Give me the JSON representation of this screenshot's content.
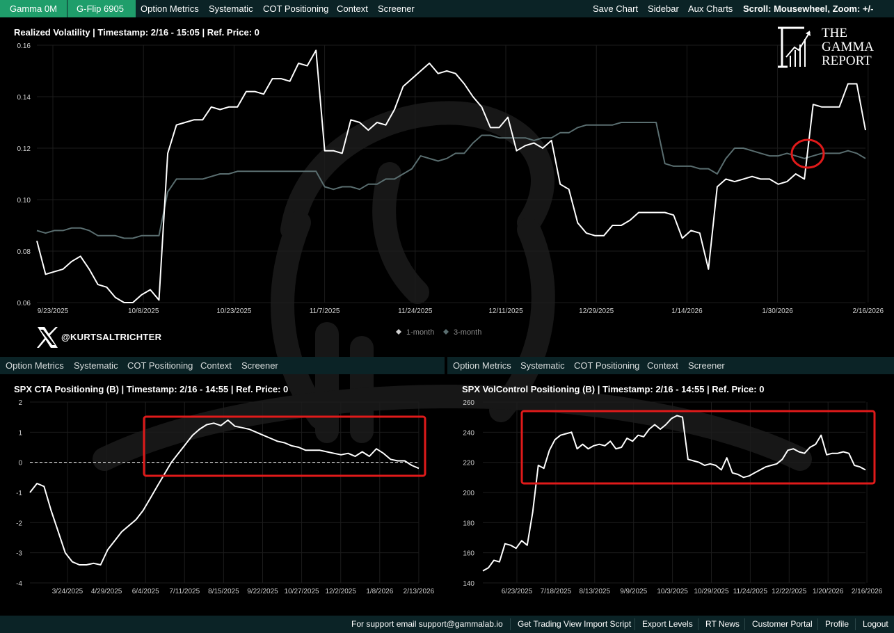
{
  "top_nav": {
    "gamma": "Gamma 0M",
    "gflip": "G-Flip 6905",
    "tabs": [
      "Option Metrics",
      "Systematic",
      "COT Positioning",
      "Context",
      "Screener"
    ],
    "right": [
      "Save Chart",
      "Sidebar",
      "Aux Charts"
    ],
    "scroll_label": "Scroll:",
    "scroll_value": " Mousewheel, Zoom: +/-"
  },
  "mid_nav_left": [
    "Option Metrics",
    "Systematic",
    "COT Positioning",
    "Context",
    "Screener"
  ],
  "mid_nav_right": [
    "Option Metrics",
    "Systematic",
    "COT Positioning",
    "Context",
    "Screener"
  ],
  "logo": {
    "line1": "THE",
    "line2": "GAMMA",
    "line3": "REPORT"
  },
  "social": {
    "handle": "@KURTSALTRICHTER"
  },
  "footer": {
    "support": "For support email support@gammalab.io",
    "links": [
      "Get Trading View Import Script",
      "Export Levels",
      "RT News",
      "Customer Portal",
      "Profile",
      "Logout"
    ]
  },
  "colors": {
    "nav_bg": "#0b2326",
    "accent_green": "#1f9e6b",
    "highlight_red": "#e01a1a",
    "series_1m": "#ffffff",
    "series_3m": "#5a6e70"
  },
  "chart_data": [
    {
      "type": "line",
      "title": "Realized Volatility | Timestamp: 2/16 - 15:05  | Ref. Price: 0",
      "x_tick_labels": [
        "9/23/2025",
        "10/8/2025",
        "10/23/2025",
        "11/7/2025",
        "11/24/2025",
        "12/11/2025",
        "12/29/2025",
        "1/14/2026",
        "1/30/2026",
        "2/16/2026"
      ],
      "y_tick_labels": [
        "0.06",
        "0.08",
        "0.10",
        "0.12",
        "0.14",
        "0.16"
      ],
      "ylim": [
        0.06,
        0.16
      ],
      "grid": true,
      "legend": {
        "placement": "bottom-center",
        "entries": [
          "1-month",
          "3-month"
        ]
      },
      "series": [
        {
          "name": "1-month",
          "color": "#ffffff",
          "values": [
            0.084,
            0.071,
            0.072,
            0.073,
            0.076,
            0.078,
            0.073,
            0.067,
            0.066,
            0.062,
            0.06,
            0.06,
            0.063,
            0.065,
            0.061,
            0.118,
            0.129,
            0.13,
            0.131,
            0.131,
            0.136,
            0.135,
            0.136,
            0.136,
            0.142,
            0.142,
            0.141,
            0.147,
            0.147,
            0.146,
            0.153,
            0.152,
            0.158,
            0.119,
            0.119,
            0.118,
            0.131,
            0.13,
            0.127,
            0.13,
            0.129,
            0.135,
            0.144,
            0.147,
            0.15,
            0.153,
            0.149,
            0.15,
            0.149,
            0.145,
            0.14,
            0.136,
            0.128,
            0.128,
            0.132,
            0.119,
            0.121,
            0.122,
            0.12,
            0.123,
            0.106,
            0.104,
            0.091,
            0.087,
            0.086,
            0.086,
            0.09,
            0.09,
            0.092,
            0.095,
            0.095,
            0.095,
            0.095,
            0.094,
            0.085,
            0.088,
            0.087,
            0.073,
            0.105,
            0.108,
            0.107,
            0.108,
            0.109,
            0.108,
            0.108,
            0.106,
            0.107,
            0.11,
            0.108,
            0.137,
            0.136,
            0.136,
            0.136,
            0.145,
            0.145,
            0.127
          ]
        },
        {
          "name": "3-month",
          "color": "#5a6e70",
          "values": [
            0.088,
            0.087,
            0.088,
            0.088,
            0.089,
            0.089,
            0.088,
            0.086,
            0.086,
            0.086,
            0.085,
            0.085,
            0.086,
            0.086,
            0.086,
            0.103,
            0.108,
            0.108,
            0.108,
            0.108,
            0.109,
            0.11,
            0.11,
            0.111,
            0.111,
            0.111,
            0.111,
            0.111,
            0.111,
            0.111,
            0.111,
            0.111,
            0.111,
            0.105,
            0.104,
            0.105,
            0.105,
            0.104,
            0.106,
            0.106,
            0.108,
            0.108,
            0.11,
            0.112,
            0.117,
            0.116,
            0.115,
            0.116,
            0.118,
            0.118,
            0.122,
            0.125,
            0.125,
            0.124,
            0.124,
            0.124,
            0.124,
            0.123,
            0.124,
            0.124,
            0.126,
            0.126,
            0.128,
            0.129,
            0.129,
            0.129,
            0.129,
            0.13,
            0.13,
            0.13,
            0.13,
            0.13,
            0.114,
            0.113,
            0.113,
            0.113,
            0.112,
            0.112,
            0.11,
            0.116,
            0.12,
            0.12,
            0.119,
            0.118,
            0.117,
            0.117,
            0.118,
            0.117,
            0.116,
            0.117,
            0.118,
            0.118,
            0.118,
            0.119,
            0.118,
            0.116
          ]
        }
      ]
    },
    {
      "type": "line",
      "title": "SPX CTA Positioning (B) | Timestamp: 2/16 - 14:55  | Ref. Price: 0",
      "x_tick_labels": [
        "3/24/2025",
        "4/29/2025",
        "6/4/2025",
        "7/11/2025",
        "8/15/2025",
        "9/22/2025",
        "10/27/2025",
        "12/2/2025",
        "1/8/2026",
        "2/13/2026"
      ],
      "y_tick_labels": [
        "-4",
        "-3",
        "-2",
        "-1",
        "0",
        "1",
        "2"
      ],
      "ylim": [
        -4,
        2
      ],
      "reference_line": 0,
      "series": [
        {
          "name": "",
          "color": "#ffffff",
          "values": [
            -1.0,
            -0.7,
            -0.8,
            -1.6,
            -2.3,
            -3.0,
            -3.3,
            -3.4,
            -3.4,
            -3.35,
            -3.4,
            -2.9,
            -2.6,
            -2.3,
            -2.1,
            -1.9,
            -1.6,
            -1.2,
            -0.8,
            -0.4,
            0.0,
            0.3,
            0.6,
            0.9,
            1.1,
            1.25,
            1.3,
            1.22,
            1.4,
            1.2,
            1.15,
            1.1,
            1.0,
            0.9,
            0.8,
            0.7,
            0.65,
            0.55,
            0.5,
            0.4,
            0.4,
            0.4,
            0.35,
            0.3,
            0.25,
            0.3,
            0.2,
            0.35,
            0.2,
            0.45,
            0.3,
            0.1,
            0.05,
            0.05,
            -0.1,
            -0.2
          ]
        }
      ]
    },
    {
      "type": "line",
      "title": "SPX VolControl Positioning (B) | Timestamp: 2/16 - 14:55  | Ref. Price: 0",
      "x_tick_labels": [
        "6/23/2025",
        "7/18/2025",
        "8/13/2025",
        "9/9/2025",
        "10/3/2025",
        "10/29/2025",
        "11/24/2025",
        "12/22/2025",
        "1/20/2026",
        "2/16/2026"
      ],
      "y_tick_labels": [
        "140",
        "160",
        "180",
        "200",
        "220",
        "240",
        "260"
      ],
      "ylim": [
        140,
        260
      ],
      "series": [
        {
          "name": "",
          "color": "#ffffff",
          "values": [
            148,
            150,
            155,
            154,
            166,
            165,
            163,
            168,
            165,
            187,
            218,
            216,
            228,
            235,
            238,
            239,
            240,
            229,
            232,
            229,
            231,
            232,
            231,
            234,
            229,
            230,
            236,
            234,
            238,
            237,
            242,
            245,
            242,
            245,
            249,
            251,
            250,
            222,
            221,
            220,
            218,
            219,
            218,
            215,
            223,
            213,
            212,
            210,
            211,
            213,
            215,
            217,
            218,
            219,
            222,
            228,
            229,
            227,
            226,
            230,
            232,
            238,
            225,
            226,
            226,
            227,
            226,
            218,
            217,
            215
          ]
        }
      ]
    }
  ]
}
